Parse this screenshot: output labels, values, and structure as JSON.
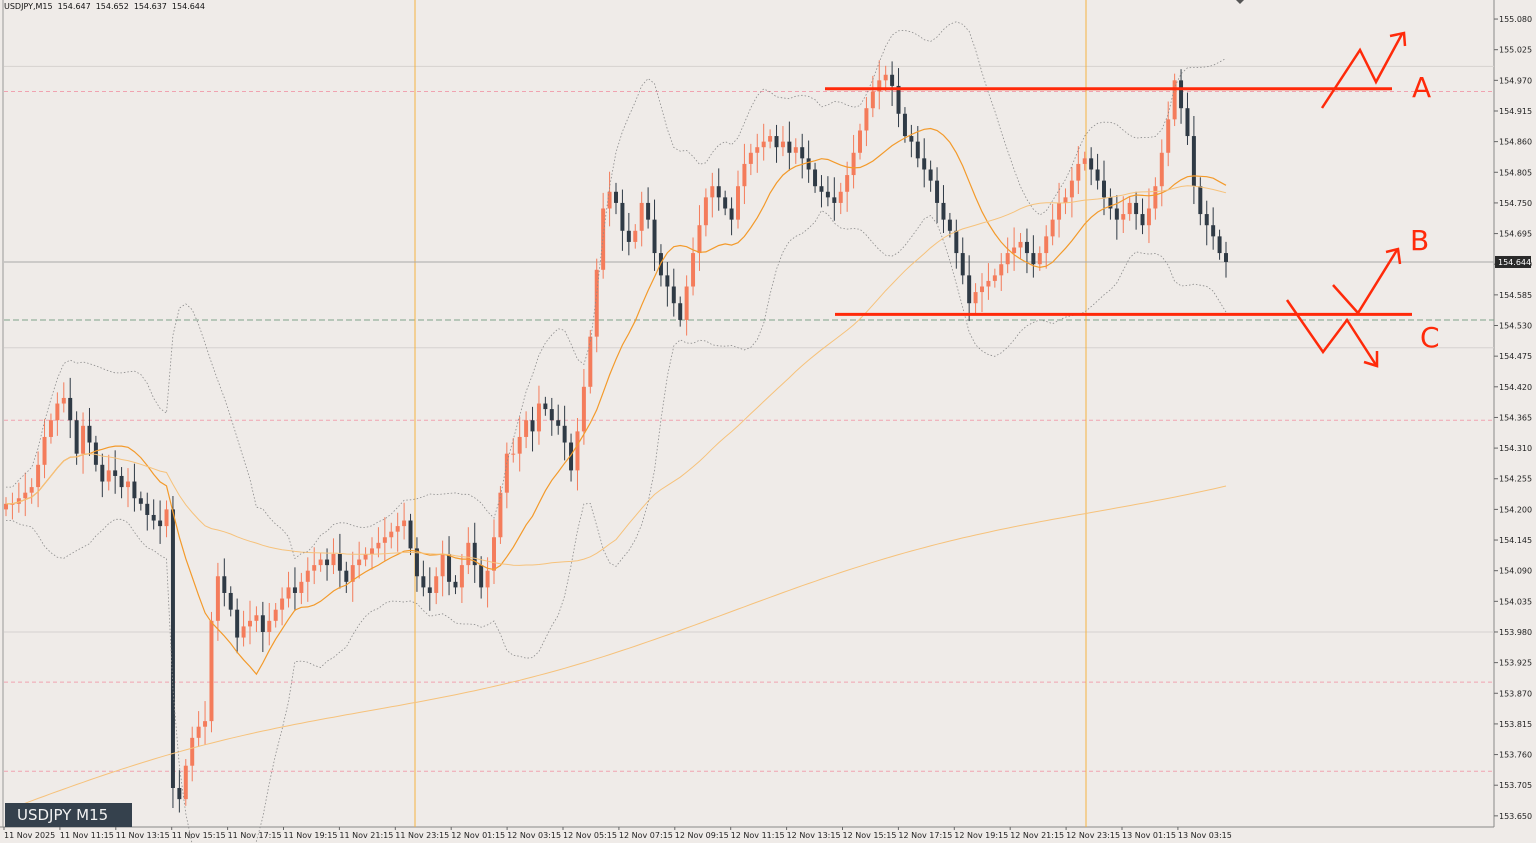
{
  "header": {
    "symbol": "USDJPY,M15",
    "open": "154.647",
    "high": "154.652",
    "low": "154.637",
    "close": "154.644"
  },
  "symbol_box": "USDJPY M15",
  "colors": {
    "bull": "#f47c5b",
    "bear": "#2f3a45",
    "ma_fast": "#f39a2b",
    "ma_slow": "#f6c27b",
    "bands": "#8a8a8a",
    "annotation": "#ff2a0a",
    "session_line": "#f5b342",
    "price_line": "#a9a9a9",
    "pink_level": "#f0a3b0",
    "green_level": "#7fa38a",
    "background": "#efebe8"
  },
  "chart_data": {
    "type": "candlestick",
    "instrument": "USDJPY",
    "timeframe": "M15",
    "ylim": [
      153.62,
      155.11
    ],
    "y_ticks": [
      "155.080",
      "155.025",
      "154.970",
      "154.915",
      "154.860",
      "154.805",
      "154.750",
      "154.695",
      "154.640",
      "154.585",
      "154.530",
      "154.475",
      "154.420",
      "154.365",
      "154.310",
      "154.255",
      "154.200",
      "154.145",
      "154.090",
      "154.035",
      "153.980",
      "153.925",
      "153.870",
      "153.815",
      "153.760",
      "153.705",
      "153.650"
    ],
    "x_ticks": [
      "11 Nov 2025",
      "11 Nov 11:15",
      "11 Nov 13:15",
      "11 Nov 15:15",
      "11 Nov 17:15",
      "11 Nov 19:15",
      "11 Nov 21:15",
      "11 Nov 23:15",
      "12 Nov 01:15",
      "12 Nov 03:15",
      "12 Nov 05:15",
      "12 Nov 07:15",
      "12 Nov 09:15",
      "12 Nov 11:15",
      "12 Nov 13:15",
      "12 Nov 15:15",
      "12 Nov 17:15",
      "12 Nov 19:15",
      "12 Nov 21:15",
      "12 Nov 23:15",
      "13 Nov 01:15",
      "13 Nov 03:15"
    ],
    "current_price": "154.644",
    "levels": {
      "pink_dashed": [
        154.95,
        154.36,
        153.89,
        153.73
      ],
      "green_dashed": 154.54,
      "grey_solid": [
        154.995,
        154.49,
        153.98
      ]
    },
    "annotations": {
      "resistance_line": 154.955,
      "support_line": 154.55,
      "labels": [
        "A",
        "B",
        "C"
      ]
    },
    "closes": [
      154.21,
      154.21,
      154.22,
      154.23,
      154.24,
      154.28,
      154.33,
      154.36,
      154.39,
      154.4,
      154.36,
      154.3,
      154.35,
      154.32,
      154.28,
      154.25,
      154.27,
      154.26,
      154.24,
      154.25,
      154.22,
      154.21,
      154.19,
      154.18,
      154.17,
      154.2,
      153.7,
      153.68,
      153.74,
      153.79,
      153.81,
      153.82,
      154.0,
      154.08,
      154.05,
      154.02,
      153.97,
      153.99,
      154.0,
      154.01,
      153.98,
      154.0,
      154.02,
      154.04,
      154.06,
      154.05,
      154.07,
      154.09,
      154.1,
      154.11,
      154.1,
      154.12,
      154.09,
      154.07,
      154.1,
      154.11,
      154.12,
      154.13,
      154.14,
      154.15,
      154.16,
      154.17,
      154.18,
      154.13,
      154.08,
      154.06,
      154.05,
      154.08,
      154.12,
      154.07,
      154.06,
      154.1,
      154.14,
      154.1,
      154.06,
      154.09,
      154.15,
      154.23,
      154.3,
      154.3,
      154.33,
      154.36,
      154.34,
      154.39,
      154.38,
      154.36,
      154.35,
      154.32,
      154.27,
      154.34,
      154.42,
      154.51,
      154.63,
      154.74,
      154.77,
      154.75,
      154.7,
      154.68,
      154.7,
      154.75,
      154.72,
      154.66,
      154.62,
      154.6,
      154.57,
      154.54,
      154.6,
      154.66,
      154.71,
      154.76,
      154.78,
      154.76,
      154.74,
      154.72,
      154.78,
      154.82,
      154.84,
      154.85,
      154.86,
      154.87,
      154.85,
      154.86,
      154.84,
      154.85,
      154.83,
      154.81,
      154.78,
      154.77,
      154.76,
      154.75,
      154.77,
      154.8,
      154.84,
      154.88,
      154.92,
      154.95,
      154.97,
      154.98,
      154.96,
      154.91,
      154.87,
      154.86,
      154.83,
      154.81,
      154.79,
      154.75,
      154.72,
      154.7,
      154.66,
      154.62,
      154.57,
      154.59,
      154.6,
      154.61,
      154.62,
      154.64,
      154.66,
      154.67,
      154.68,
      154.66,
      154.64,
      154.66,
      154.69,
      154.72,
      154.75,
      154.76,
      154.79,
      154.82,
      154.83,
      154.81,
      154.79,
      154.76,
      154.74,
      154.72,
      154.73,
      154.75,
      154.73,
      154.71,
      154.74,
      154.78,
      154.84,
      154.9,
      154.97,
      154.92,
      154.87,
      154.78,
      154.73,
      154.71,
      154.69,
      154.66,
      154.644
    ],
    "ma_fast": "orange moving average",
    "ma_slow": "light orange moving average",
    "bands": "grey dotted Bollinger bands"
  }
}
